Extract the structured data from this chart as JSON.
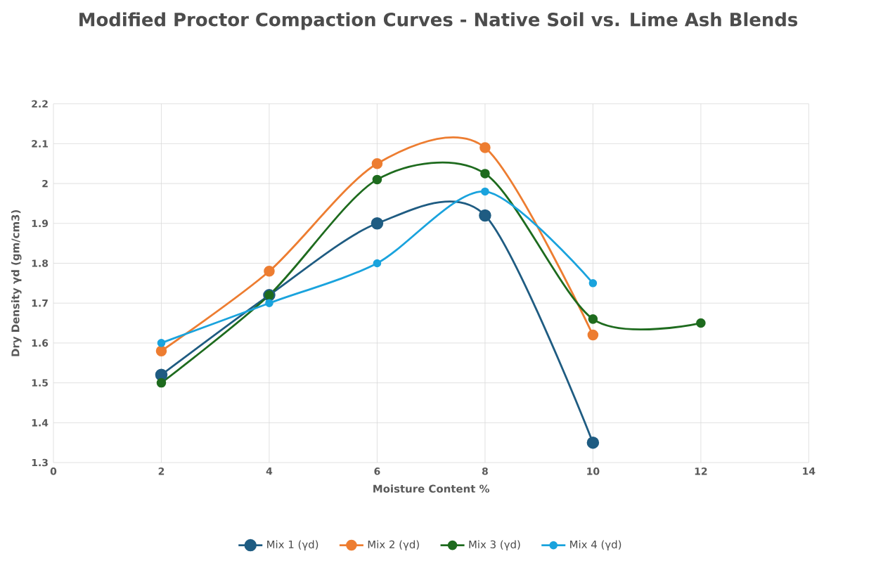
{
  "chart_data": {
    "type": "line",
    "title": "Modified Proctor Compaction Curves - Native Soil vs. Lime Ash Blends",
    "xlabel": "Moisture Content %",
    "ylabel": "Dry Density γd (gm/cm3)",
    "series": [
      {
        "name": "Mix 1 (γd)",
        "color": "#1f5c82",
        "x": [
          2,
          4,
          6,
          8,
          10
        ],
        "values": [
          1.52,
          1.72,
          1.9,
          1.92,
          1.35
        ]
      },
      {
        "name": "Mix 2 (γd)",
        "color": "#ed7d31",
        "x": [
          2,
          4,
          6,
          8,
          10
        ],
        "values": [
          1.58,
          1.78,
          2.05,
          2.09,
          1.62
        ]
      },
      {
        "name": "Mix 3 (γd)",
        "color": "#1e6b1e",
        "x": [
          2,
          4,
          6,
          8,
          10,
          12
        ],
        "values": [
          1.5,
          1.72,
          2.01,
          2.025,
          1.66,
          1.65
        ]
      },
      {
        "name": "Mix 4 (γd)",
        "color": "#1aa3dd",
        "x": [
          2,
          4,
          6,
          8,
          10
        ],
        "values": [
          1.6,
          1.7,
          1.8,
          1.98,
          1.75
        ]
      }
    ],
    "xlim": [
      0,
      14
    ],
    "xticks": [
      0,
      2,
      4,
      6,
      8,
      10,
      12,
      14
    ],
    "ylim": [
      1.3,
      2.2
    ],
    "yticks": [
      1.3,
      1.4,
      1.5,
      1.6,
      1.7,
      1.8,
      1.9,
      2,
      2.1,
      2.2
    ],
    "grid": true,
    "legend": "bottom",
    "marker": "circle",
    "line_style": "solid"
  }
}
